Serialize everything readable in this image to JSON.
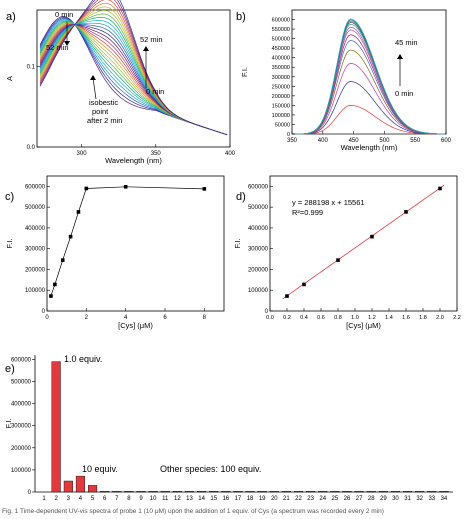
{
  "chart_data": [
    {
      "panel": "a)",
      "type": "line",
      "xlabel": "Wavelength (nm)",
      "ylabel": "A",
      "xlim": [
        270,
        400
      ],
      "ylim": [
        0,
        0.17
      ],
      "xticks": [
        300,
        350,
        400
      ],
      "yticks": [
        0.0,
        0.1
      ],
      "annotations": [
        "0 min",
        "52 min",
        "52 min",
        "0 min",
        "isobestic",
        "point",
        "after 2 min"
      ],
      "curve_count": 26
    },
    {
      "panel": "b)",
      "type": "line",
      "xlabel": "Wavelength (nm)",
      "ylabel": "F.I.",
      "xlim": [
        350,
        600
      ],
      "ylim": [
        0,
        650000
      ],
      "xticks": [
        350,
        400,
        450,
        500,
        550,
        600
      ],
      "yticks": [
        0,
        50000,
        100000,
        150000,
        200000,
        250000,
        300000,
        350000,
        400000,
        450000,
        500000,
        550000,
        600000
      ],
      "peak_x": 445,
      "peaks": [
        0,
        150000,
        275000,
        370000,
        440000,
        490000,
        520000,
        545000,
        560000,
        575000,
        585000,
        592000,
        598000,
        603000
      ],
      "annotations": [
        "45 min",
        "0 min"
      ]
    },
    {
      "panel": "c)",
      "type": "line",
      "xlabel": "[Cys] (μM)",
      "ylabel": "F.I.",
      "xlim": [
        0,
        9
      ],
      "ylim": [
        0,
        650000
      ],
      "xticks": [
        0,
        2,
        4,
        6,
        8
      ],
      "yticks": [
        0,
        100000,
        200000,
        300000,
        400000,
        500000,
        600000
      ],
      "x": [
        0.2,
        0.4,
        0.8,
        1.2,
        1.6,
        2,
        4,
        8
      ],
      "y": [
        72000,
        128000,
        245000,
        358000,
        477000,
        590000,
        598000,
        588000
      ]
    },
    {
      "panel": "d)",
      "type": "scatter",
      "xlabel": "[Cys] (μM)",
      "ylabel": "F.I.",
      "xlim": [
        0,
        2.2
      ],
      "ylim": [
        0,
        650000
      ],
      "xticks": [
        0.0,
        0.2,
        0.4,
        0.6,
        0.8,
        1.0,
        1.2,
        1.4,
        1.6,
        1.8,
        2.0,
        2.2
      ],
      "yticks": [
        0,
        100000,
        200000,
        300000,
        400000,
        500000,
        600000
      ],
      "x": [
        0.2,
        0.4,
        0.8,
        1.2,
        1.6,
        2.0
      ],
      "y": [
        72000,
        128000,
        245000,
        358000,
        477000,
        590000
      ],
      "fit_slope": 288198,
      "fit_intercept": 15561,
      "equation": "y = 288198 x + 15561",
      "r2": "R²=0.999"
    },
    {
      "panel": "e)",
      "type": "bar",
      "xlabel": "",
      "ylabel": "F.I.",
      "ylim": [
        0,
        620000
      ],
      "yticks": [
        0,
        100000,
        200000,
        300000,
        400000,
        500000,
        600000
      ],
      "categories": [
        "1",
        "2",
        "3",
        "4",
        "5",
        "6",
        "7",
        "8",
        "9",
        "10",
        "11",
        "12",
        "13",
        "14",
        "15",
        "16",
        "17",
        "18",
        "19",
        "20",
        "21",
        "22",
        "23",
        "24",
        "25",
        "26",
        "27",
        "28",
        "29",
        "30",
        "31",
        "32",
        "33",
        "34"
      ],
      "values": [
        0,
        590000,
        50000,
        72000,
        30000,
        3000,
        3000,
        3000,
        3000,
        3000,
        3000,
        3000,
        3000,
        3000,
        3000,
        3000,
        3000,
        3000,
        3000,
        3000,
        3000,
        3000,
        3000,
        3000,
        3000,
        3000,
        3000,
        3000,
        3000,
        3000,
        3000,
        3000,
        3000,
        3000
      ],
      "annotations": [
        "1.0 equiv.",
        "10 equiv.",
        "Other species: 100 equiv."
      ],
      "bar_color": "#e03a3e"
    }
  ],
  "caption": "Fig. 1 Time-dependent UV-vis spectra of probe 1 (10 μM) upon the addition of 1 equiv. of Cys (a spectrum was recorded every 2 min)"
}
